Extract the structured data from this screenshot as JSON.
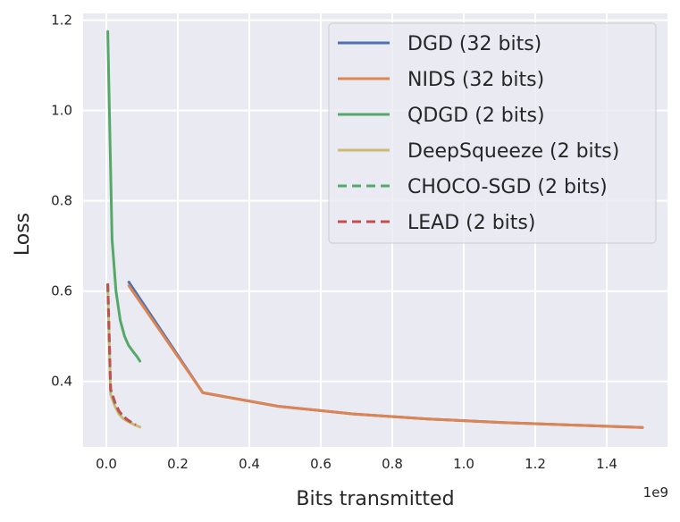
{
  "chart_data": {
    "type": "line",
    "title": "",
    "xlabel": "Bits transmitted",
    "ylabel": "Loss",
    "x_offset_label": "1e9",
    "xlim": [
      -0.065,
      1.57
    ],
    "ylim": [
      0.255,
      1.215
    ],
    "xticks": [
      0.0,
      0.2,
      0.4,
      0.6,
      0.8,
      1.0,
      1.2,
      1.4
    ],
    "xtick_labels": [
      "0.0",
      "0.2",
      "0.4",
      "0.6",
      "0.8",
      "1.0",
      "1.2",
      "1.4"
    ],
    "yticks": [
      0.4,
      0.6,
      0.8,
      1.0,
      1.2
    ],
    "ytick_labels": [
      "0.4",
      "0.6",
      "0.8",
      "1.0",
      "1.2"
    ],
    "grid": true,
    "legend_position": "top-right",
    "series": [
      {
        "name": "DGD (32 bits)",
        "color": "#4c72b0",
        "dashed": false,
        "x": [
          0.063,
          0.27,
          0.48,
          0.69,
          0.9,
          1.11,
          1.32,
          1.5
        ],
        "y": [
          0.62,
          0.375,
          0.345,
          0.328,
          0.317,
          0.309,
          0.303,
          0.298
        ]
      },
      {
        "name": "NIDS (32 bits)",
        "color": "#dd8452",
        "dashed": false,
        "x": [
          0.063,
          0.27,
          0.48,
          0.69,
          0.9,
          1.11,
          1.32,
          1.5
        ],
        "y": [
          0.612,
          0.375,
          0.345,
          0.328,
          0.317,
          0.309,
          0.303,
          0.298
        ]
      },
      {
        "name": "QDGD (2 bits)",
        "color": "#55a868",
        "dashed": false,
        "x": [
          0.004,
          0.016,
          0.027,
          0.039,
          0.051,
          0.062,
          0.074,
          0.086,
          0.094
        ],
        "y": [
          1.175,
          0.715,
          0.6,
          0.535,
          0.5,
          0.48,
          0.467,
          0.455,
          0.445
        ]
      },
      {
        "name": "DeepSqueeze (2 bits)",
        "color": "#ccb974",
        "dashed": false,
        "x": [
          0.004,
          0.012,
          0.024,
          0.035,
          0.047,
          0.059,
          0.071,
          0.082,
          0.094
        ],
        "y": [
          0.613,
          0.372,
          0.345,
          0.328,
          0.318,
          0.312,
          0.307,
          0.303,
          0.299
        ]
      },
      {
        "name": "CHOCO-SGD (2 bits)",
        "color": "#55a868",
        "dashed": true,
        "x": [
          0.004,
          0.012,
          0.024,
          0.035,
          0.047,
          0.059,
          0.071,
          0.082
        ],
        "y": [
          0.615,
          0.38,
          0.352,
          0.334,
          0.322,
          0.315,
          0.309,
          0.304
        ]
      },
      {
        "name": "LEAD (2 bits)",
        "color": "#c44e52",
        "dashed": true,
        "x": [
          0.004,
          0.012,
          0.024,
          0.035,
          0.047,
          0.059,
          0.071,
          0.082
        ],
        "y": [
          0.617,
          0.383,
          0.354,
          0.335,
          0.323,
          0.315,
          0.309,
          0.304
        ]
      }
    ]
  }
}
